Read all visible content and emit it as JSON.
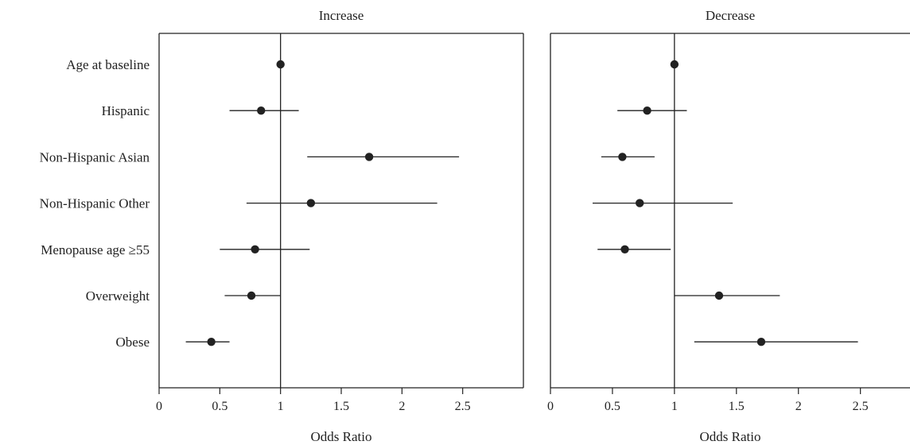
{
  "chart_data": [
    {
      "type": "forest",
      "title": "Increase",
      "xlabel": "Odds Ratio",
      "xlim": [
        0,
        3
      ],
      "xticks": [
        0,
        0.5,
        1,
        1.5,
        2,
        2.5
      ],
      "xtick_labels": [
        "0",
        "0.5",
        "1",
        "1.5",
        "2",
        "2.5"
      ],
      "reference_line": 1,
      "categories": [
        "Age at baseline",
        "Hispanic",
        "Non-Hispanic Asian",
        "Non-Hispanic Other",
        "Menopause age ≥55",
        "Overweight",
        "Obese"
      ],
      "estimates": [
        1.0,
        0.84,
        1.73,
        1.25,
        0.79,
        0.76,
        0.43
      ],
      "ci_lower": [
        1.0,
        0.58,
        1.22,
        0.72,
        0.5,
        0.54,
        0.22
      ],
      "ci_upper": [
        1.0,
        1.15,
        2.47,
        2.29,
        1.24,
        1.0,
        0.58
      ]
    },
    {
      "type": "forest",
      "title": "Decrease",
      "xlabel": "Odds Ratio",
      "xlim": [
        0,
        2.9
      ],
      "xticks": [
        0,
        0.5,
        1,
        1.5,
        2,
        2.5
      ],
      "xtick_labels": [
        "0",
        "0.5",
        "1",
        "1.5",
        "2",
        "2.5"
      ],
      "reference_line": 1,
      "categories": [
        "Age at baseline",
        "Hispanic",
        "Non-Hispanic Asian",
        "Non-Hispanic Other",
        "Menopause age ≥55",
        "Overweight",
        "Obese"
      ],
      "estimates": [
        1.0,
        0.78,
        0.58,
        0.72,
        0.6,
        1.36,
        1.7
      ],
      "ci_lower": [
        1.0,
        0.54,
        0.41,
        0.34,
        0.38,
        1.0,
        1.16
      ],
      "ci_upper": [
        1.0,
        1.1,
        0.84,
        1.47,
        0.97,
        1.85,
        2.48
      ]
    }
  ],
  "colors": {
    "ink": "#222222",
    "axis": "#222222",
    "background": "#ffffff"
  }
}
